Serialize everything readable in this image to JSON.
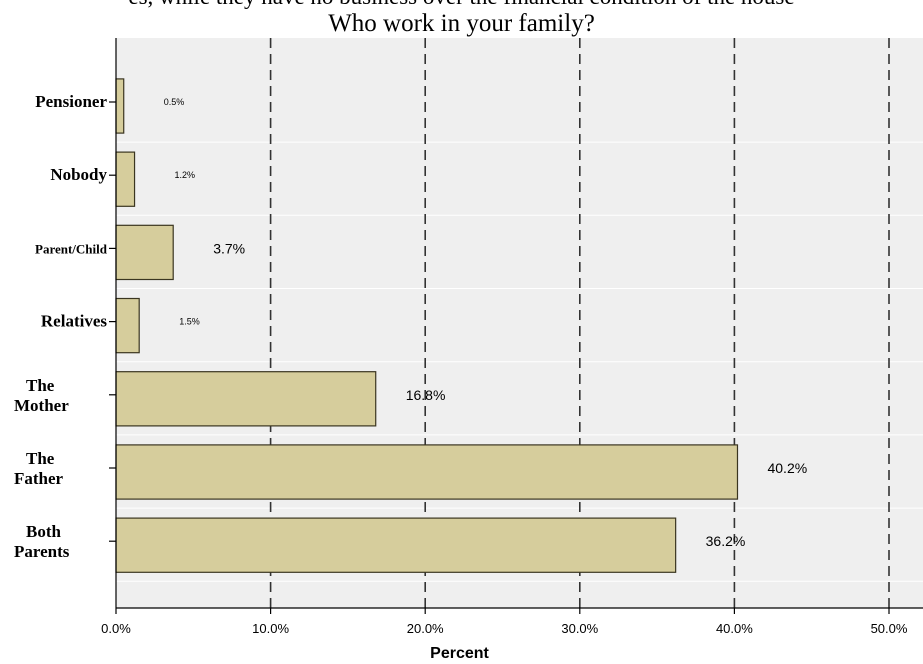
{
  "cut_off_text": "es, while they have no business over the financial condition of the house",
  "chart_data": {
    "type": "bar",
    "orientation": "horizontal",
    "title": "Who work in your family?",
    "xlabel": "Percent",
    "ylabel": "",
    "xlim": [
      0,
      50
    ],
    "x_ticks": [
      "0.0%",
      "10.0%",
      "20.0%",
      "30.0%",
      "40.0%",
      "50.0%"
    ],
    "x_tick_values": [
      0,
      10,
      20,
      30,
      40,
      50
    ],
    "grid": "vertical dashed lines",
    "categories": [
      [
        "Pensioner"
      ],
      [
        "Nobody"
      ],
      [
        "Parent/Child"
      ],
      [
        "Relatives"
      ],
      [
        "The",
        "Mother"
      ],
      [
        "The",
        "Father"
      ],
      [
        "Both",
        "Parents"
      ]
    ],
    "values": [
      0.5,
      1.2,
      3.7,
      1.5,
      16.8,
      40.2,
      36.2
    ],
    "data_labels": [
      "0.5%",
      "1.2%",
      "3.7%",
      "1.5%",
      "16.8%",
      "40.2%",
      "36.2%"
    ],
    "colors": {
      "bar_fill": "#d6cd9c",
      "bar_stroke": "#3a3520",
      "plot_background": "#efefef",
      "grid": "#333333"
    }
  }
}
